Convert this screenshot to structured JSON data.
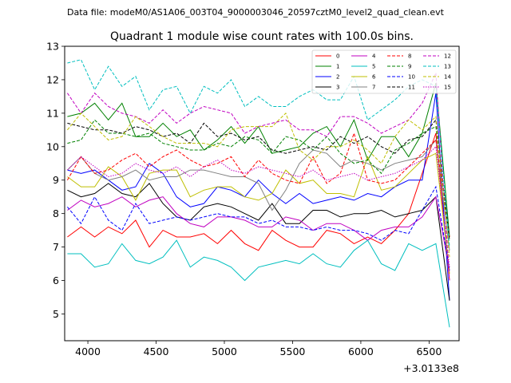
{
  "suptitle": "Data file: modeM0/AS1A06_003T04_9000003046_20597cztM0_level2_quad_clean.evt",
  "chart_data": {
    "type": "line",
    "title": "Quadrant 1 module wise count rates with 100.0s bins.",
    "xlabel": "",
    "ylabel": "",
    "x_offset_label": "+3.0133e8",
    "xlim": [
      3830,
      6720
    ],
    "ylim": [
      4.2,
      13.0
    ],
    "xticks": [
      4000,
      4500,
      5000,
      5500,
      6000,
      6500
    ],
    "yticks": [
      5,
      6,
      7,
      8,
      9,
      10,
      11,
      12,
      13
    ],
    "legend_position": "top-right",
    "x": [
      3850,
      3950,
      4050,
      4150,
      4250,
      4350,
      4450,
      4550,
      4650,
      4750,
      4850,
      4950,
      5050,
      5150,
      5250,
      5350,
      5450,
      5550,
      5650,
      5750,
      5850,
      5950,
      6050,
      6150,
      6250,
      6350,
      6450,
      6550,
      6650
    ],
    "series": [
      {
        "name": "0",
        "color": "#ff0000",
        "dash": "solid",
        "values": [
          7.3,
          7.6,
          7.3,
          7.6,
          7.4,
          7.8,
          7.0,
          7.5,
          7.3,
          7.3,
          7.4,
          7.1,
          7.5,
          7.1,
          6.9,
          7.5,
          7.2,
          7.0,
          7.0,
          7.5,
          7.4,
          7.1,
          7.3,
          7.1,
          7.5,
          8.0,
          9.2,
          10.4,
          6.0
        ]
      },
      {
        "name": "1",
        "color": "#008000",
        "dash": "solid",
        "values": [
          10.9,
          11.0,
          11.3,
          10.8,
          11.3,
          10.3,
          10.3,
          10.7,
          10.3,
          10.5,
          9.9,
          10.2,
          10.6,
          10.1,
          10.6,
          9.8,
          9.9,
          10.0,
          10.4,
          10.6,
          10.0,
          10.8,
          9.6,
          10.3,
          10.3,
          9.7,
          10.4,
          11.9,
          7.3
        ]
      },
      {
        "name": "2",
        "color": "#0000ff",
        "dash": "solid",
        "values": [
          9.3,
          9.2,
          9.3,
          9.0,
          8.7,
          8.8,
          9.5,
          9.2,
          8.5,
          8.2,
          8.3,
          8.8,
          8.7,
          8.5,
          9.0,
          8.6,
          8.3,
          8.6,
          8.3,
          8.4,
          8.5,
          8.4,
          8.6,
          8.5,
          8.8,
          9.0,
          9.0,
          11.6,
          5.4
        ]
      },
      {
        "name": "3",
        "color": "#000000",
        "dash": "solid",
        "values": [
          8.7,
          8.5,
          8.6,
          8.9,
          8.6,
          8.5,
          8.9,
          8.3,
          7.9,
          7.8,
          8.2,
          8.3,
          8.2,
          8.0,
          7.8,
          8.3,
          7.7,
          7.7,
          8.1,
          8.1,
          7.9,
          8.0,
          8.0,
          8.1,
          7.9,
          8.0,
          8.1,
          8.5,
          5.4
        ]
      },
      {
        "name": "4",
        "color": "#c000c0",
        "dash": "solid",
        "values": [
          8.1,
          8.4,
          8.2,
          8.3,
          8.5,
          8.2,
          8.4,
          8.5,
          8.0,
          7.7,
          7.6,
          7.9,
          7.9,
          7.8,
          7.6,
          7.6,
          7.9,
          7.8,
          7.5,
          7.7,
          7.7,
          7.5,
          7.2,
          7.5,
          7.6,
          7.6,
          7.9,
          8.5,
          6.3
        ]
      },
      {
        "name": "5",
        "color": "#00bfbf",
        "dash": "solid",
        "values": [
          6.8,
          6.8,
          6.4,
          6.5,
          7.1,
          6.6,
          6.5,
          6.7,
          7.2,
          6.4,
          6.7,
          6.6,
          6.4,
          6.0,
          6.4,
          6.5,
          6.6,
          6.5,
          6.8,
          6.5,
          6.4,
          6.9,
          7.2,
          6.5,
          6.3,
          7.1,
          6.9,
          7.1,
          4.6
        ]
      },
      {
        "name": "6",
        "color": "#bfbf00",
        "dash": "solid",
        "values": [
          9.1,
          8.8,
          8.8,
          9.4,
          9.1,
          8.4,
          9.2,
          9.3,
          9.3,
          8.5,
          8.7,
          8.8,
          8.8,
          8.5,
          8.4,
          8.6,
          9.3,
          8.9,
          9.0,
          8.6,
          8.6,
          8.5,
          9.7,
          8.7,
          8.8,
          9.2,
          9.6,
          9.8,
          6.2
        ]
      },
      {
        "name": "7",
        "color": "#808080",
        "dash": "solid",
        "values": [
          9.3,
          9.7,
          9.2,
          9.0,
          9.1,
          9.3,
          9.0,
          9.1,
          9.1,
          9.3,
          9.3,
          9.2,
          9.1,
          9.1,
          8.9,
          8.1,
          8.7,
          9.5,
          9.9,
          9.8,
          9.4,
          9.6,
          9.5,
          9.3,
          9.5,
          9.6,
          9.7,
          10.2,
          6.9
        ]
      },
      {
        "name": "8",
        "color": "#ff0000",
        "dash": "dashed",
        "values": [
          9.0,
          9.7,
          9.2,
          9.3,
          9.6,
          9.8,
          9.4,
          9.7,
          9.9,
          9.6,
          9.4,
          9.5,
          9.7,
          9.1,
          9.6,
          9.2,
          9.0,
          8.9,
          9.7,
          8.9,
          9.2,
          10.4,
          9.0,
          8.9,
          9.0,
          9.4,
          9.8,
          10.2,
          7.3
        ]
      },
      {
        "name": "9",
        "color": "#008000",
        "dash": "dashed",
        "values": [
          10.1,
          10.2,
          10.8,
          10.4,
          10.4,
          10.3,
          10.4,
          10.1,
          10.0,
          9.9,
          9.9,
          10.1,
          10.0,
          10.3,
          10.2,
          9.8,
          10.3,
          10.2,
          9.9,
          10.3,
          9.8,
          9.5,
          9.6,
          9.2,
          9.9,
          10.1,
          10.4,
          10.6,
          7.2
        ]
      },
      {
        "name": "10",
        "color": "#0000ff",
        "dash": "dashed",
        "values": [
          8.2,
          7.7,
          8.5,
          7.8,
          7.5,
          8.3,
          7.7,
          7.8,
          7.9,
          7.8,
          7.9,
          8.0,
          7.9,
          7.9,
          7.7,
          7.8,
          7.6,
          7.6,
          7.5,
          7.6,
          7.5,
          7.5,
          7.4,
          7.2,
          7.5,
          7.4,
          8.1,
          8.8,
          6.3
        ]
      },
      {
        "name": "11",
        "color": "#000000",
        "dash": "dashed",
        "values": [
          10.7,
          10.6,
          10.5,
          10.5,
          10.4,
          10.6,
          10.5,
          10.3,
          10.4,
          10.1,
          10.7,
          10.3,
          10.4,
          10.2,
          10.3,
          9.9,
          9.8,
          9.9,
          10.0,
          9.9,
          10.3,
          10.1,
          10.3,
          10.0,
          9.8,
          10.2,
          10.3,
          10.8,
          7.2
        ]
      },
      {
        "name": "12",
        "color": "#c000c0",
        "dash": "dashed",
        "values": [
          11.6,
          11.0,
          11.6,
          11.2,
          11.0,
          10.9,
          10.7,
          11.1,
          10.7,
          11.0,
          11.2,
          11.1,
          11.0,
          10.4,
          10.6,
          10.7,
          10.8,
          10.5,
          10.5,
          10.3,
          10.9,
          10.9,
          10.7,
          10.4,
          10.6,
          10.8,
          11.3,
          12.2,
          6.0
        ]
      },
      {
        "name": "13",
        "color": "#00bfbf",
        "dash": "dashed",
        "values": [
          12.5,
          12.6,
          11.7,
          12.4,
          11.8,
          12.1,
          11.1,
          11.7,
          11.8,
          11.0,
          11.8,
          11.6,
          12.0,
          11.2,
          11.5,
          11.2,
          11.2,
          11.5,
          11.7,
          11.4,
          11.4,
          12.1,
          10.8,
          11.1,
          11.4,
          11.8,
          12.0,
          11.8,
          7.0
        ]
      },
      {
        "name": "14",
        "color": "#bfbf00",
        "dash": "dashed",
        "values": [
          10.5,
          11.0,
          10.6,
          10.2,
          10.3,
          10.9,
          10.6,
          10.3,
          10.1,
          10.1,
          10.1,
          10.0,
          10.5,
          10.6,
          10.6,
          10.6,
          11.0,
          9.9,
          9.6,
          10.0,
          10.0,
          10.2,
          9.9,
          9.5,
          10.3,
          10.8,
          10.5,
          10.9,
          6.7
        ]
      },
      {
        "name": "15",
        "color": "#c000c0",
        "dash": "dotted",
        "values": [
          9.3,
          9.7,
          9.4,
          9.1,
          9.2,
          9.5,
          9.3,
          9.2,
          9.4,
          9.1,
          9.4,
          9.6,
          9.3,
          9.2,
          9.4,
          9.3,
          9.2,
          9.1,
          9.3,
          9.0,
          9.1,
          9.2,
          9.0,
          9.1,
          9.2,
          9.4,
          9.6,
          10.0,
          6.4
        ]
      }
    ]
  }
}
